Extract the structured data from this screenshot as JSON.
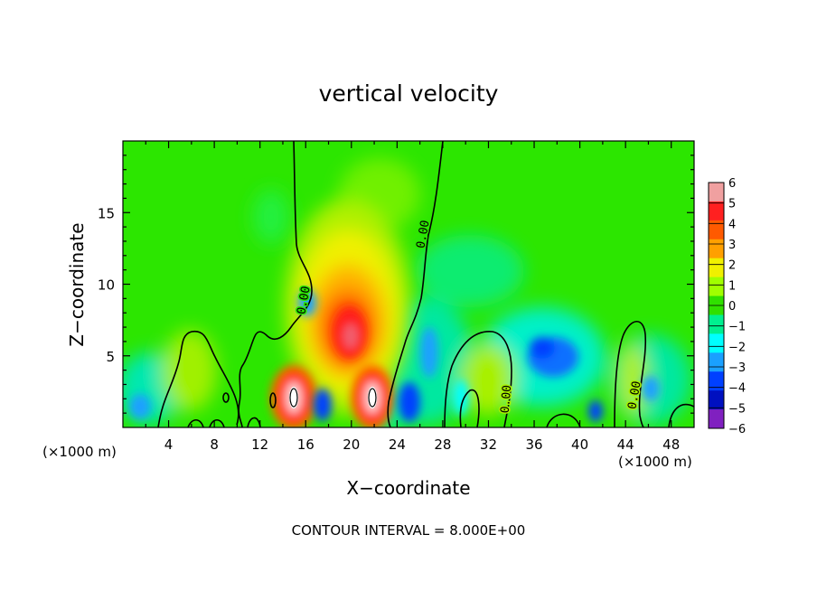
{
  "chart_data": {
    "type": "heatmap",
    "title": "vertical velocity",
    "xlabel": "X−coordinate",
    "ylabel": "Z−coordinate",
    "x_unit_left": "(×1000 m)",
    "x_unit_right": "(×1000 m)",
    "footer": "CONTOUR INTERVAL = 8.000E+00",
    "xlim": [
      0,
      50
    ],
    "ylim": [
      0,
      20
    ],
    "x_ticks": [
      4,
      8,
      12,
      16,
      20,
      24,
      28,
      32,
      36,
      40,
      44,
      48
    ],
    "y_ticks": [
      5,
      10,
      15
    ],
    "colorbar": {
      "levels": [
        6,
        5,
        4,
        3,
        2,
        1,
        0,
        -1,
        -2,
        -3,
        -4,
        -5,
        -6
      ],
      "labels": [
        "6",
        "5",
        "4",
        "3",
        "2",
        "1",
        "0",
        "−1",
        "−2",
        "−3",
        "−4",
        "−5",
        "−6"
      ],
      "colors": [
        "#f0a0a0",
        "#ff2020",
        "#ff5a00",
        "#ffa000",
        "#f0f000",
        "#a0ff00",
        "#30e000",
        "#00f090",
        "#00ffff",
        "#1aa0ff",
        "#0040ff",
        "#0010c0",
        "#8020c0"
      ]
    },
    "contour_label": "0.00",
    "features": [
      {
        "x": 19.8,
        "z": 6.8,
        "w": 4.0
      },
      {
        "x": 15.0,
        "z": 2.1,
        "w": 6.0
      },
      {
        "x": 21.8,
        "z": 2.1,
        "w": 6.0
      },
      {
        "x": 17.6,
        "z": 1.5,
        "w": -4.0
      },
      {
        "x": 25.0,
        "z": 1.3,
        "w": -4.0
      },
      {
        "x": 37.8,
        "z": 5.0,
        "w": -3.0
      },
      {
        "x": 1.5,
        "z": 1.5,
        "w": -3.0
      },
      {
        "x": 41.3,
        "z": 1.0,
        "w": -3.0
      }
    ]
  }
}
